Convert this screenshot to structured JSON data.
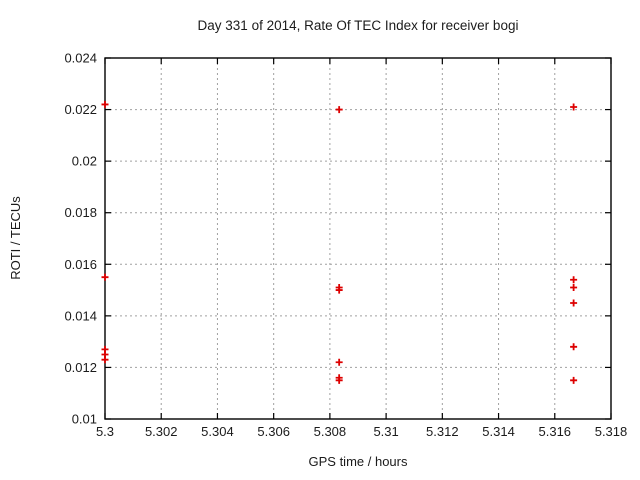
{
  "window": {
    "background": "#ffffff"
  },
  "style": {
    "axis_color": "#000000",
    "grid_color": "#a0a0a0",
    "text_color": "#1b1b1b"
  },
  "chart_data": {
    "type": "scatter",
    "title": "Day 331 of 2014, Rate Of TEC Index for receiver bogi",
    "xlabel": "GPS time / hours",
    "ylabel": "ROTI / TECUs",
    "xlim": [
      5.3,
      5.318
    ],
    "ylim": [
      0.01,
      0.024
    ],
    "grid": true,
    "legend_position": "none",
    "marker": "plus",
    "marker_color": "#dd0000",
    "x_ticks": [
      {
        "value": 5.3,
        "label": "5.3"
      },
      {
        "value": 5.302,
        "label": "5.302"
      },
      {
        "value": 5.304,
        "label": "5.304"
      },
      {
        "value": 5.306,
        "label": "5.306"
      },
      {
        "value": 5.308,
        "label": "5.308"
      },
      {
        "value": 5.31,
        "label": "5.31"
      },
      {
        "value": 5.312,
        "label": "5.312"
      },
      {
        "value": 5.314,
        "label": "5.314"
      },
      {
        "value": 5.316,
        "label": "5.316"
      },
      {
        "value": 5.318,
        "label": "5.318"
      }
    ],
    "y_ticks": [
      {
        "value": 0.01,
        "label": "0.01"
      },
      {
        "value": 0.012,
        "label": "0.012"
      },
      {
        "value": 0.014,
        "label": "0.014"
      },
      {
        "value": 0.016,
        "label": "0.016"
      },
      {
        "value": 0.018,
        "label": "0.018"
      },
      {
        "value": 0.02,
        "label": "0.02"
      },
      {
        "value": 0.022,
        "label": "0.022"
      },
      {
        "value": 0.024,
        "label": "0.024"
      }
    ],
    "series": [
      {
        "name": "ROTI",
        "points": [
          [
            5.3,
            0.0222
          ],
          [
            5.3,
            0.0155
          ],
          [
            5.3,
            0.0127
          ],
          [
            5.3,
            0.0125
          ],
          [
            5.3,
            0.0123
          ],
          [
            5.30833,
            0.022
          ],
          [
            5.30833,
            0.0151
          ],
          [
            5.30833,
            0.015
          ],
          [
            5.30833,
            0.0122
          ],
          [
            5.30833,
            0.0116
          ],
          [
            5.30833,
            0.0115
          ],
          [
            5.31667,
            0.0221
          ],
          [
            5.31667,
            0.0154
          ],
          [
            5.31667,
            0.0151
          ],
          [
            5.31667,
            0.0145
          ],
          [
            5.31667,
            0.0128
          ],
          [
            5.31667,
            0.0115
          ]
        ]
      }
    ]
  }
}
